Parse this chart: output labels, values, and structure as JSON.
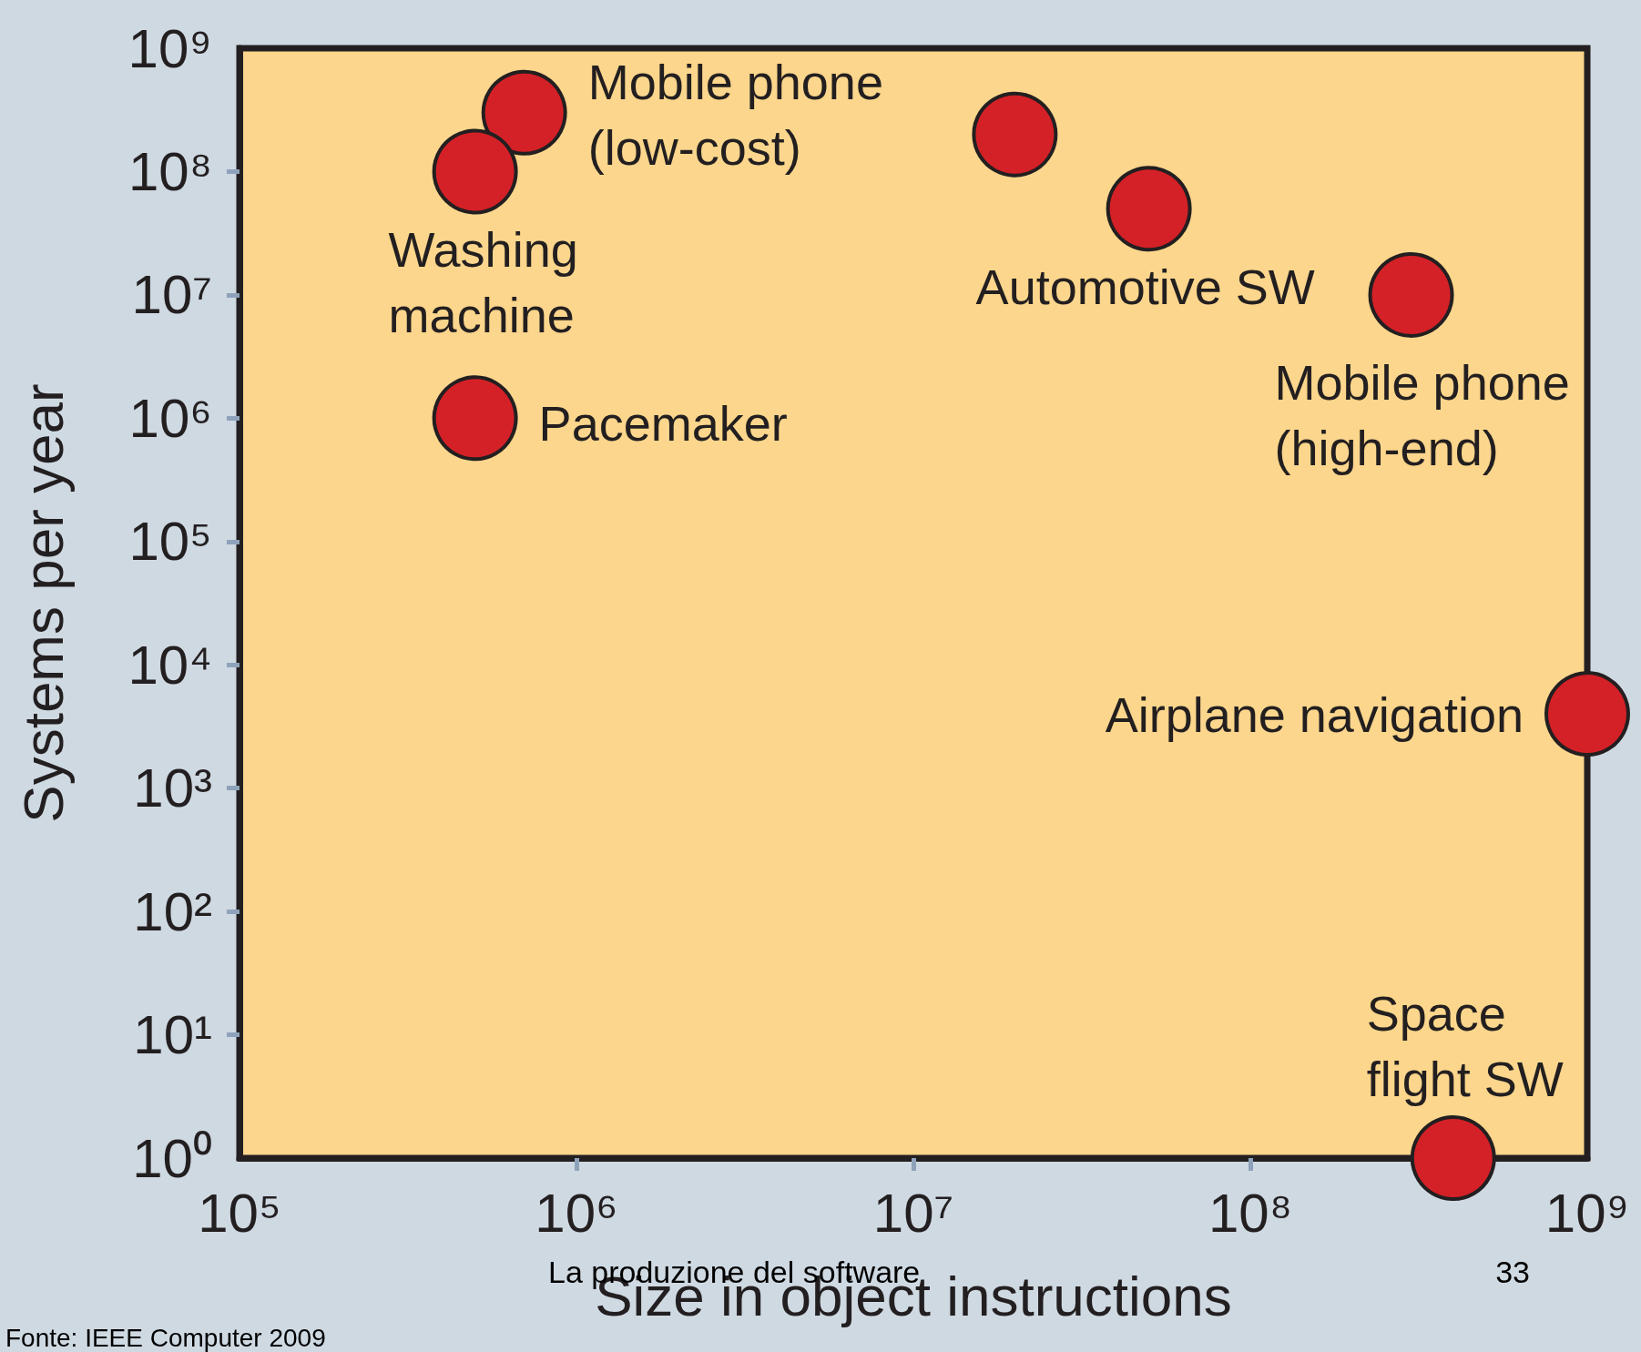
{
  "chart_data": {
    "type": "scatter",
    "xlabel": "Size in object instructions",
    "ylabel": "Systems per year",
    "x": [
      700000,
      500000,
      500000,
      20000000,
      50000000,
      300000000,
      1000000000,
      400000000
    ],
    "values": [
      300000000,
      100000000,
      1000000,
      200000000,
      50000000,
      10000000,
      4000,
      1
    ],
    "color": "#d42127",
    "marker": "circle",
    "log": "xy",
    "grid": false,
    "xlim": [
      100000,
      1000000000
    ],
    "xticks": [
      {
        "value": 100000,
        "label": "10⁵"
      },
      {
        "value": 1000000,
        "label": "10⁶"
      },
      {
        "value": 10000000,
        "label": "10⁷"
      },
      {
        "value": 100000000,
        "label": "10⁸"
      },
      {
        "value": 1000000000,
        "label": "10⁹"
      }
    ],
    "ylim": [
      1,
      1000000000
    ],
    "yticks": [
      {
        "value": 1,
        "label": "10⁰"
      },
      {
        "value": 10,
        "label": "10¹"
      },
      {
        "value": 100,
        "label": "10²"
      },
      {
        "value": 1000,
        "label": "10³"
      },
      {
        "value": 10000,
        "label": "10⁴"
      },
      {
        "value": 100000,
        "label": "10⁵"
      },
      {
        "value": 1000000,
        "label": "10⁶"
      },
      {
        "value": 10000000,
        "label": "10⁷"
      },
      {
        "value": 100000000,
        "label": "10⁸"
      },
      {
        "value": 1000000000,
        "label": "10⁹"
      }
    ],
    "annotations": [
      {
        "text": "Mobile phone\n(low-cost)",
        "x": 700000,
        "y": 300000000
      },
      {
        "text": "Washing\nmachine",
        "x": 500000,
        "y": 100000000
      },
      {
        "text": "Pacemaker",
        "x": 500000,
        "y": 1000000
      },
      {
        "text": "Automotive SW",
        "x": 50000000,
        "y": 50000000
      },
      {
        "text": "Mobile phone\n(high-end)",
        "x": 300000000,
        "y": 10000000
      },
      {
        "text": "Airplane navigation",
        "x": 1000000000,
        "y": 4000
      },
      {
        "text": "Space\nflight SW",
        "x": 400000000,
        "y": 1
      },
      "La produzione del software",
      "33",
      "Fonte: IEEE Computer 2009"
    ]
  }
}
